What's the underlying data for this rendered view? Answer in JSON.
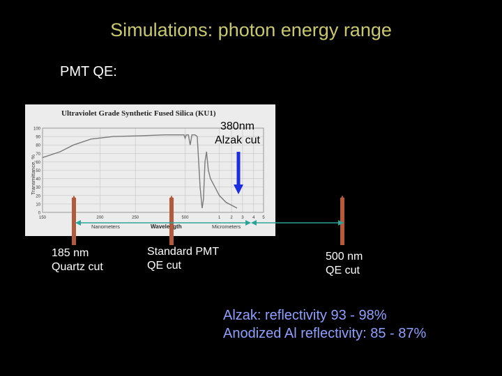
{
  "slide": {
    "title": "Simulations: photon energy range",
    "subtitle": "PMT QE:",
    "notes": {
      "alzak_cut": [
        "380nm",
        "Alzak cut"
      ],
      "quartz_cut": [
        "185 nm",
        "Quartz cut"
      ],
      "pmt_cut": [
        "Standard PMT",
        "QE cut"
      ],
      "qe_cut_500": [
        "500 nm",
        "QE cut"
      ]
    },
    "reflectivity": [
      "Alzak: reflectivity 93 - 98%",
      "Anodized Al reflectivity: 85 - 87%"
    ]
  },
  "chart_data": {
    "type": "line",
    "title": "Ultraviolet Grade Synthetic Fused Silica (KU1)",
    "ylabel": "Transmittance, %",
    "xlabel": "Wavelength",
    "x_unit_labels": [
      "Nanometers",
      "Micrometers"
    ],
    "ylim": [
      0,
      100
    ],
    "yticks": [
      0,
      10,
      20,
      30,
      40,
      50,
      60,
      70,
      80,
      90,
      100
    ],
    "xticks_nm": [
      "150",
      "200",
      "250",
      "500"
    ],
    "xticks_um": [
      "1",
      "2",
      "3",
      "4",
      "5"
    ],
    "grid": true,
    "series": [
      {
        "points": [
          [
            0.0,
            65
          ],
          [
            0.08,
            72
          ],
          [
            0.14,
            80
          ],
          [
            0.22,
            87
          ],
          [
            0.32,
            90
          ],
          [
            0.45,
            91
          ],
          [
            0.55,
            92
          ],
          [
            0.62,
            92
          ],
          [
            0.64,
            92
          ],
          [
            0.645,
            88
          ],
          [
            0.65,
            92
          ],
          [
            0.66,
            92
          ],
          [
            0.668,
            80
          ],
          [
            0.676,
            92
          ],
          [
            0.69,
            92
          ],
          [
            0.7,
            90
          ],
          [
            0.713,
            30
          ],
          [
            0.722,
            5
          ],
          [
            0.728,
            15
          ],
          [
            0.735,
            60
          ],
          [
            0.742,
            72
          ],
          [
            0.75,
            50
          ],
          [
            0.76,
            40
          ],
          [
            0.78,
            30
          ],
          [
            0.8,
            20
          ],
          [
            0.83,
            12
          ],
          [
            0.88,
            5
          ]
        ],
        "color": "#7a7a7a"
      }
    ],
    "arrow_colors": {
      "cut_arrows": "#b45a3c",
      "alzak_arrow": "#1a2ee0",
      "range_arrow": "#2aa39a"
    }
  }
}
